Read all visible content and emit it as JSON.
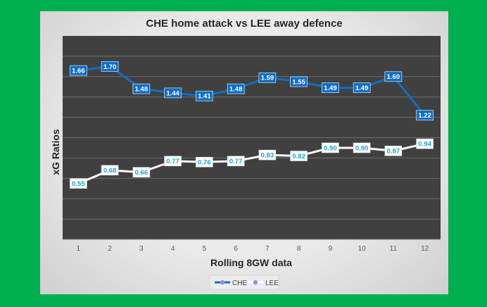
{
  "chart_data": {
    "type": "line",
    "title": "CHE home attack vs LEE away defence",
    "xlabel": "Rolling 8GW data",
    "ylabel": "xG Ratios",
    "categories": [
      "1",
      "2",
      "3",
      "4",
      "5",
      "6",
      "7",
      "8",
      "9",
      "10",
      "11",
      "12"
    ],
    "ylim": [
      0,
      2
    ],
    "grid": true,
    "legend_position": "bottom",
    "series": [
      {
        "name": "CHE",
        "color": "#0f6fc6",
        "values": [
          1.66,
          1.7,
          1.48,
          1.44,
          1.41,
          1.48,
          1.59,
          1.55,
          1.49,
          1.49,
          1.6,
          1.22
        ]
      },
      {
        "name": "LEE",
        "color": "#ffffff",
        "values": [
          0.55,
          0.68,
          0.66,
          0.77,
          0.76,
          0.77,
          0.83,
          0.82,
          0.9,
          0.9,
          0.87,
          0.94
        ]
      }
    ],
    "data_labels": [
      [
        "1.66",
        "1.70",
        "1.48",
        "1.44",
        "1.41",
        "1.48",
        "1.59",
        "1.55",
        "1.49",
        "1.49",
        "1.60",
        "1.22"
      ],
      [
        "0.55",
        "0.68",
        "0.66",
        "0.77",
        "0.76",
        "0.77",
        "0.83",
        "0.82",
        "0.90",
        "0.90",
        "0.87",
        "0.94"
      ]
    ],
    "plot_background": "#404040",
    "marker_color": "#9a8fd8",
    "label_text_color_light": "#1aa3d9"
  }
}
